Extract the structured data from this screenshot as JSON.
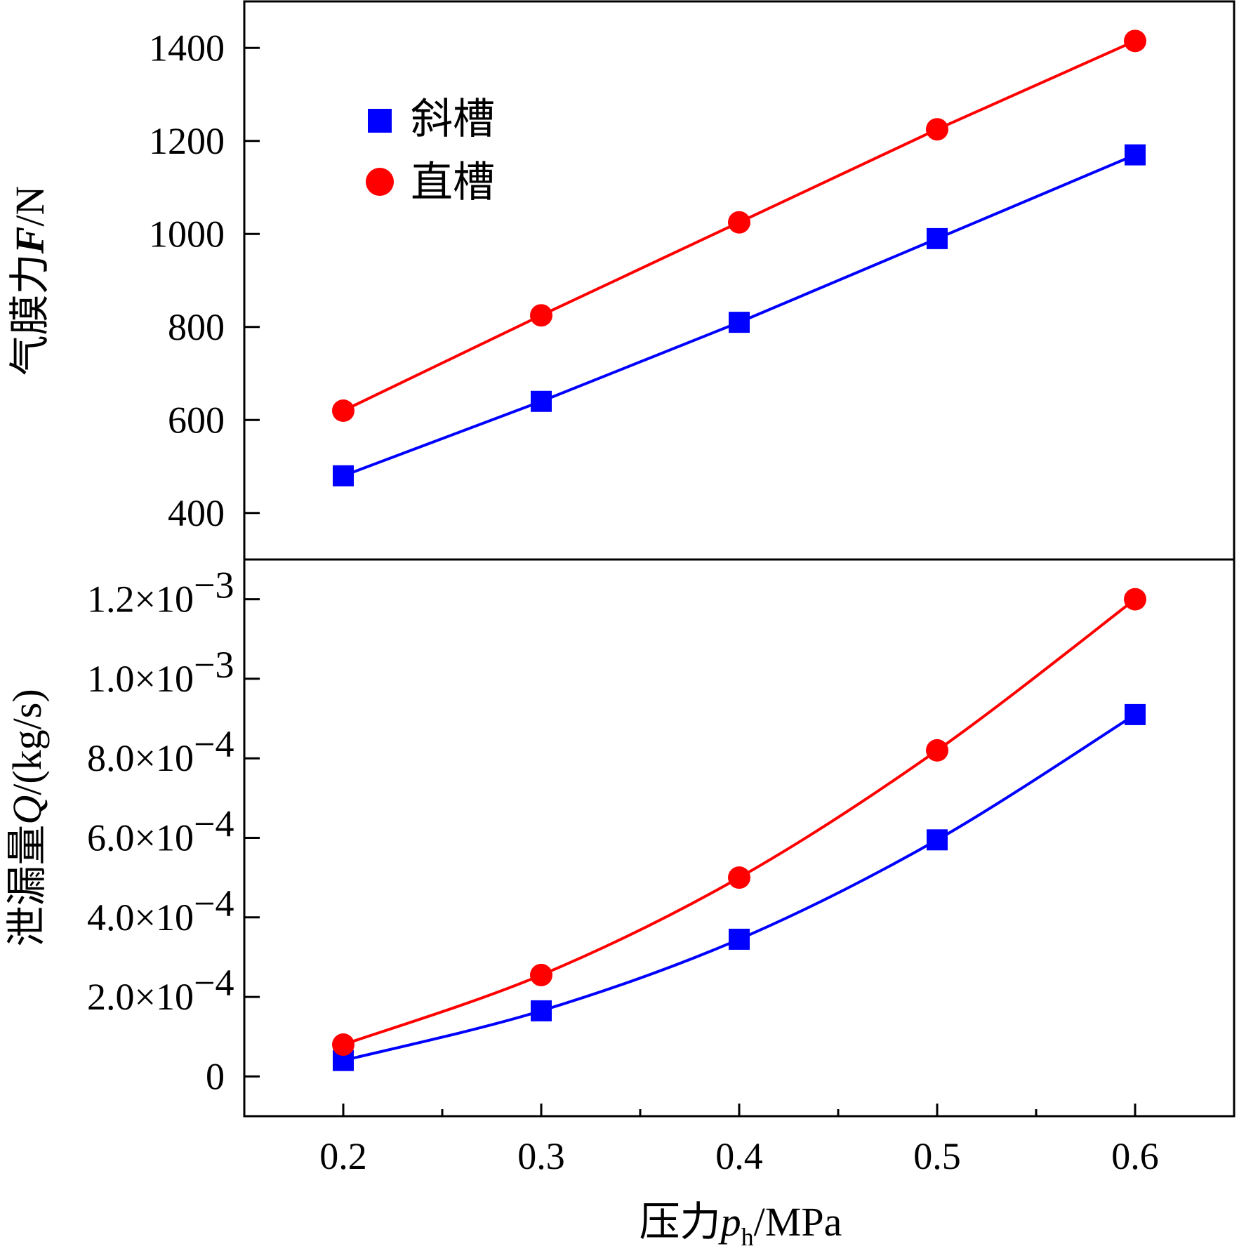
{
  "chart_data": [
    {
      "panel": "top",
      "type": "line",
      "title": "",
      "ylabel": "气膜力F/N",
      "ylim": [
        300,
        1500
      ],
      "yticks": [
        {
          "value": 400,
          "label": "400"
        },
        {
          "value": 600,
          "label": "600"
        },
        {
          "value": 800,
          "label": "800"
        },
        {
          "value": 1000,
          "label": "1000"
        },
        {
          "value": 1200,
          "label": "1200"
        },
        {
          "value": 1400,
          "label": "1400"
        }
      ],
      "x": [
        0.2,
        0.3,
        0.4,
        0.5,
        0.6
      ],
      "series": [
        {
          "name": "斜槽",
          "color": "#0000ff",
          "marker": "square",
          "values": [
            480,
            640,
            810,
            990,
            1170
          ]
        },
        {
          "name": "直槽",
          "color": "#ff0000",
          "marker": "circle",
          "values": [
            620,
            825,
            1025,
            1225,
            1415
          ]
        }
      ],
      "legend_position": "top-left"
    },
    {
      "panel": "bottom",
      "type": "line",
      "title": "",
      "ylabel": "泄漏量Q/(kg/s)",
      "ylim": [
        -0.0001,
        0.0013
      ],
      "yticks": [
        {
          "value": 0,
          "mantissa": "0",
          "exponent": ""
        },
        {
          "value": 0.0002,
          "mantissa": "2.0×10",
          "exponent": "−4"
        },
        {
          "value": 0.0004,
          "mantissa": "4.0×10",
          "exponent": "−4"
        },
        {
          "value": 0.0006,
          "mantissa": "6.0×10",
          "exponent": "−4"
        },
        {
          "value": 0.0008,
          "mantissa": "8.0×10",
          "exponent": "−4"
        },
        {
          "value": 0.001,
          "mantissa": "1.0×10",
          "exponent": "−3"
        },
        {
          "value": 0.0012,
          "mantissa": "1.2×10",
          "exponent": "−3"
        }
      ],
      "x": [
        0.2,
        0.3,
        0.4,
        0.5,
        0.6
      ],
      "series": [
        {
          "name": "斜槽",
          "color": "#0000ff",
          "marker": "square",
          "values": [
            4e-05,
            0.000165,
            0.000345,
            0.000595,
            0.00091
          ]
        },
        {
          "name": "直槽",
          "color": "#ff0000",
          "marker": "circle",
          "values": [
            8e-05,
            0.000255,
            0.0005,
            0.00082,
            0.0012
          ]
        }
      ]
    }
  ],
  "x_axis": {
    "label": "压力p_h/MPa",
    "label_parts": {
      "prefix": "压力",
      "var": "p",
      "sub": "h",
      "unit": "/MPa"
    },
    "xlim": [
      0.15,
      0.65
    ],
    "ticks": [
      {
        "value": 0.2,
        "label": "0.2"
      },
      {
        "value": 0.3,
        "label": "0.3"
      },
      {
        "value": 0.4,
        "label": "0.4"
      },
      {
        "value": 0.5,
        "label": "0.5"
      },
      {
        "value": 0.6,
        "label": "0.6"
      }
    ],
    "minor_ticks": [
      0.25,
      0.35,
      0.45,
      0.55
    ]
  },
  "top_ylabel_parts": {
    "prefix": "气膜力",
    "var": "F",
    "unit": "/N"
  },
  "bottom_ylabel_parts": {
    "prefix": "泄漏量",
    "var": "Q",
    "unit": "/(kg/s)"
  },
  "legend": [
    {
      "label": "斜槽",
      "color": "#0000ff",
      "marker": "square"
    },
    {
      "label": "直槽",
      "color": "#ff0000",
      "marker": "circle"
    }
  ]
}
